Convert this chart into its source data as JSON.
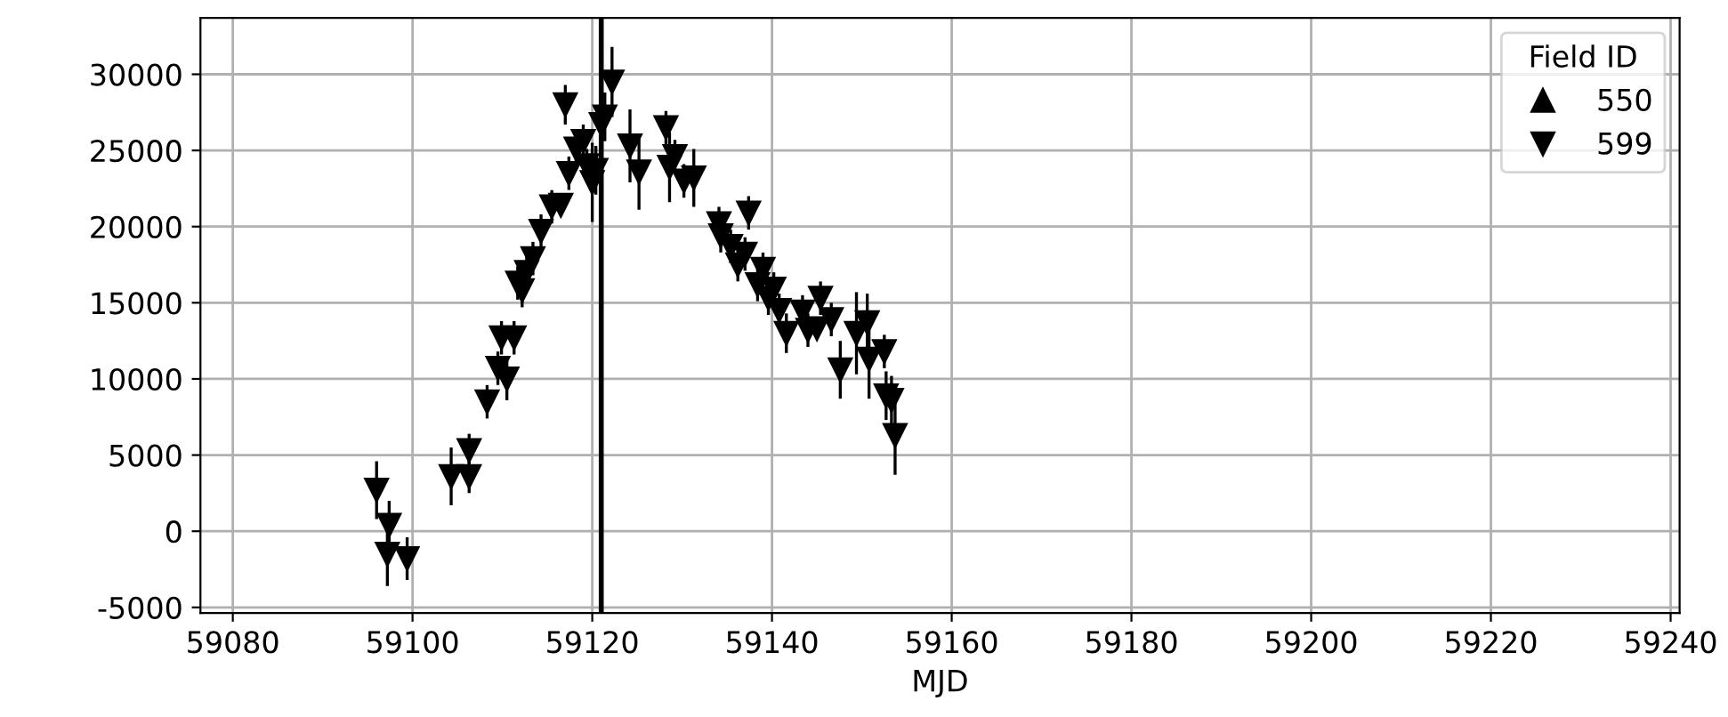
{
  "chart_data": {
    "type": "scatter",
    "xlabel": "MJD",
    "legend_title": "Field ID",
    "legend": "top right",
    "grid": true,
    "xlim": [
      59076.4,
      59241
    ],
    "xticks": [
      59080,
      59100,
      59120,
      59140,
      59160,
      59180,
      59200,
      59220,
      59240
    ],
    "ylim": [
      -5370,
      33700
    ],
    "yticks": [
      -5000,
      0,
      5000,
      10000,
      15000,
      20000,
      25000,
      30000
    ],
    "ref_lines": [
      {
        "axis": "x",
        "value": 59121,
        "color": "#000000"
      }
    ],
    "series": [
      {
        "name": "550",
        "color": "#000000",
        "marker": "triangle"
      },
      {
        "name": "599",
        "color": "#000000",
        "marker": "triangle_down",
        "x": [
          59096.0,
          59097.4,
          59097.2,
          59099.4,
          59104.3,
          59106.3,
          59106.3,
          59108.3,
          59109.5,
          59109.9,
          59110.5,
          59111.3,
          59111.7,
          59112.2,
          59112.7,
          59113.4,
          59114.3,
          59115.5,
          59116.5,
          59117.0,
          59117.4,
          59118.2,
          59119.0,
          59119.4,
          59120.0,
          59120.4,
          59121.0,
          59121.4,
          59122.2,
          59124.2,
          59125.2,
          59128.2,
          59128.6,
          59129.2,
          59130.2,
          59131.3,
          59134.1,
          59134.3,
          59135.4,
          59136.2,
          59137.0,
          59137.4,
          59138.4,
          59139.0,
          59139.6,
          59140.2,
          59140.8,
          59141.6,
          59143.4,
          59144.0,
          59145.0,
          59145.4,
          59146.6,
          59147.6,
          59149.4,
          59150.6,
          59150.8,
          59152.5,
          59152.7,
          59153.3,
          59153.7
        ],
        "values": [
          2700,
          400,
          -1500,
          -1800,
          3600,
          3600,
          5300,
          8500,
          10700,
          12700,
          10000,
          12700,
          16300,
          15800,
          17000,
          17900,
          19700,
          21300,
          21400,
          28000,
          23500,
          25100,
          25600,
          24000,
          22900,
          23700,
          26700,
          27200,
          29500,
          25300,
          23600,
          26500,
          23900,
          24600,
          23000,
          23200,
          20200,
          19400,
          18700,
          17500,
          18200,
          20900,
          16200,
          17200,
          15300,
          15900,
          14500,
          13000,
          14400,
          13200,
          13300,
          15300,
          13900,
          10600,
          13000,
          13700,
          11300,
          11800,
          8900,
          8600,
          6300
        ],
        "errors": [
          1800,
          1500,
          2000,
          1300,
          1800,
          1000,
          1000,
          1000,
          1000,
          1000,
          1300,
          1000,
          1000,
          1000,
          1000,
          1000,
          1000,
          1000,
          null,
          1200,
          1000,
          1000,
          1000,
          1000,
          2500,
          1500,
          1000,
          1500,
          2200,
          2300,
          2400,
          1000,
          2200,
          1000,
          1000,
          1800,
          1000,
          1000,
          1000,
          1000,
          1000,
          1000,
          1000,
          1000,
          1000,
          1000,
          1000,
          1200,
          1000,
          1000,
          null,
          1000,
          1000,
          1800,
          2600,
          1800,
          2500,
          1000,
          1500,
          1500,
          2500
        ]
      }
    ]
  }
}
